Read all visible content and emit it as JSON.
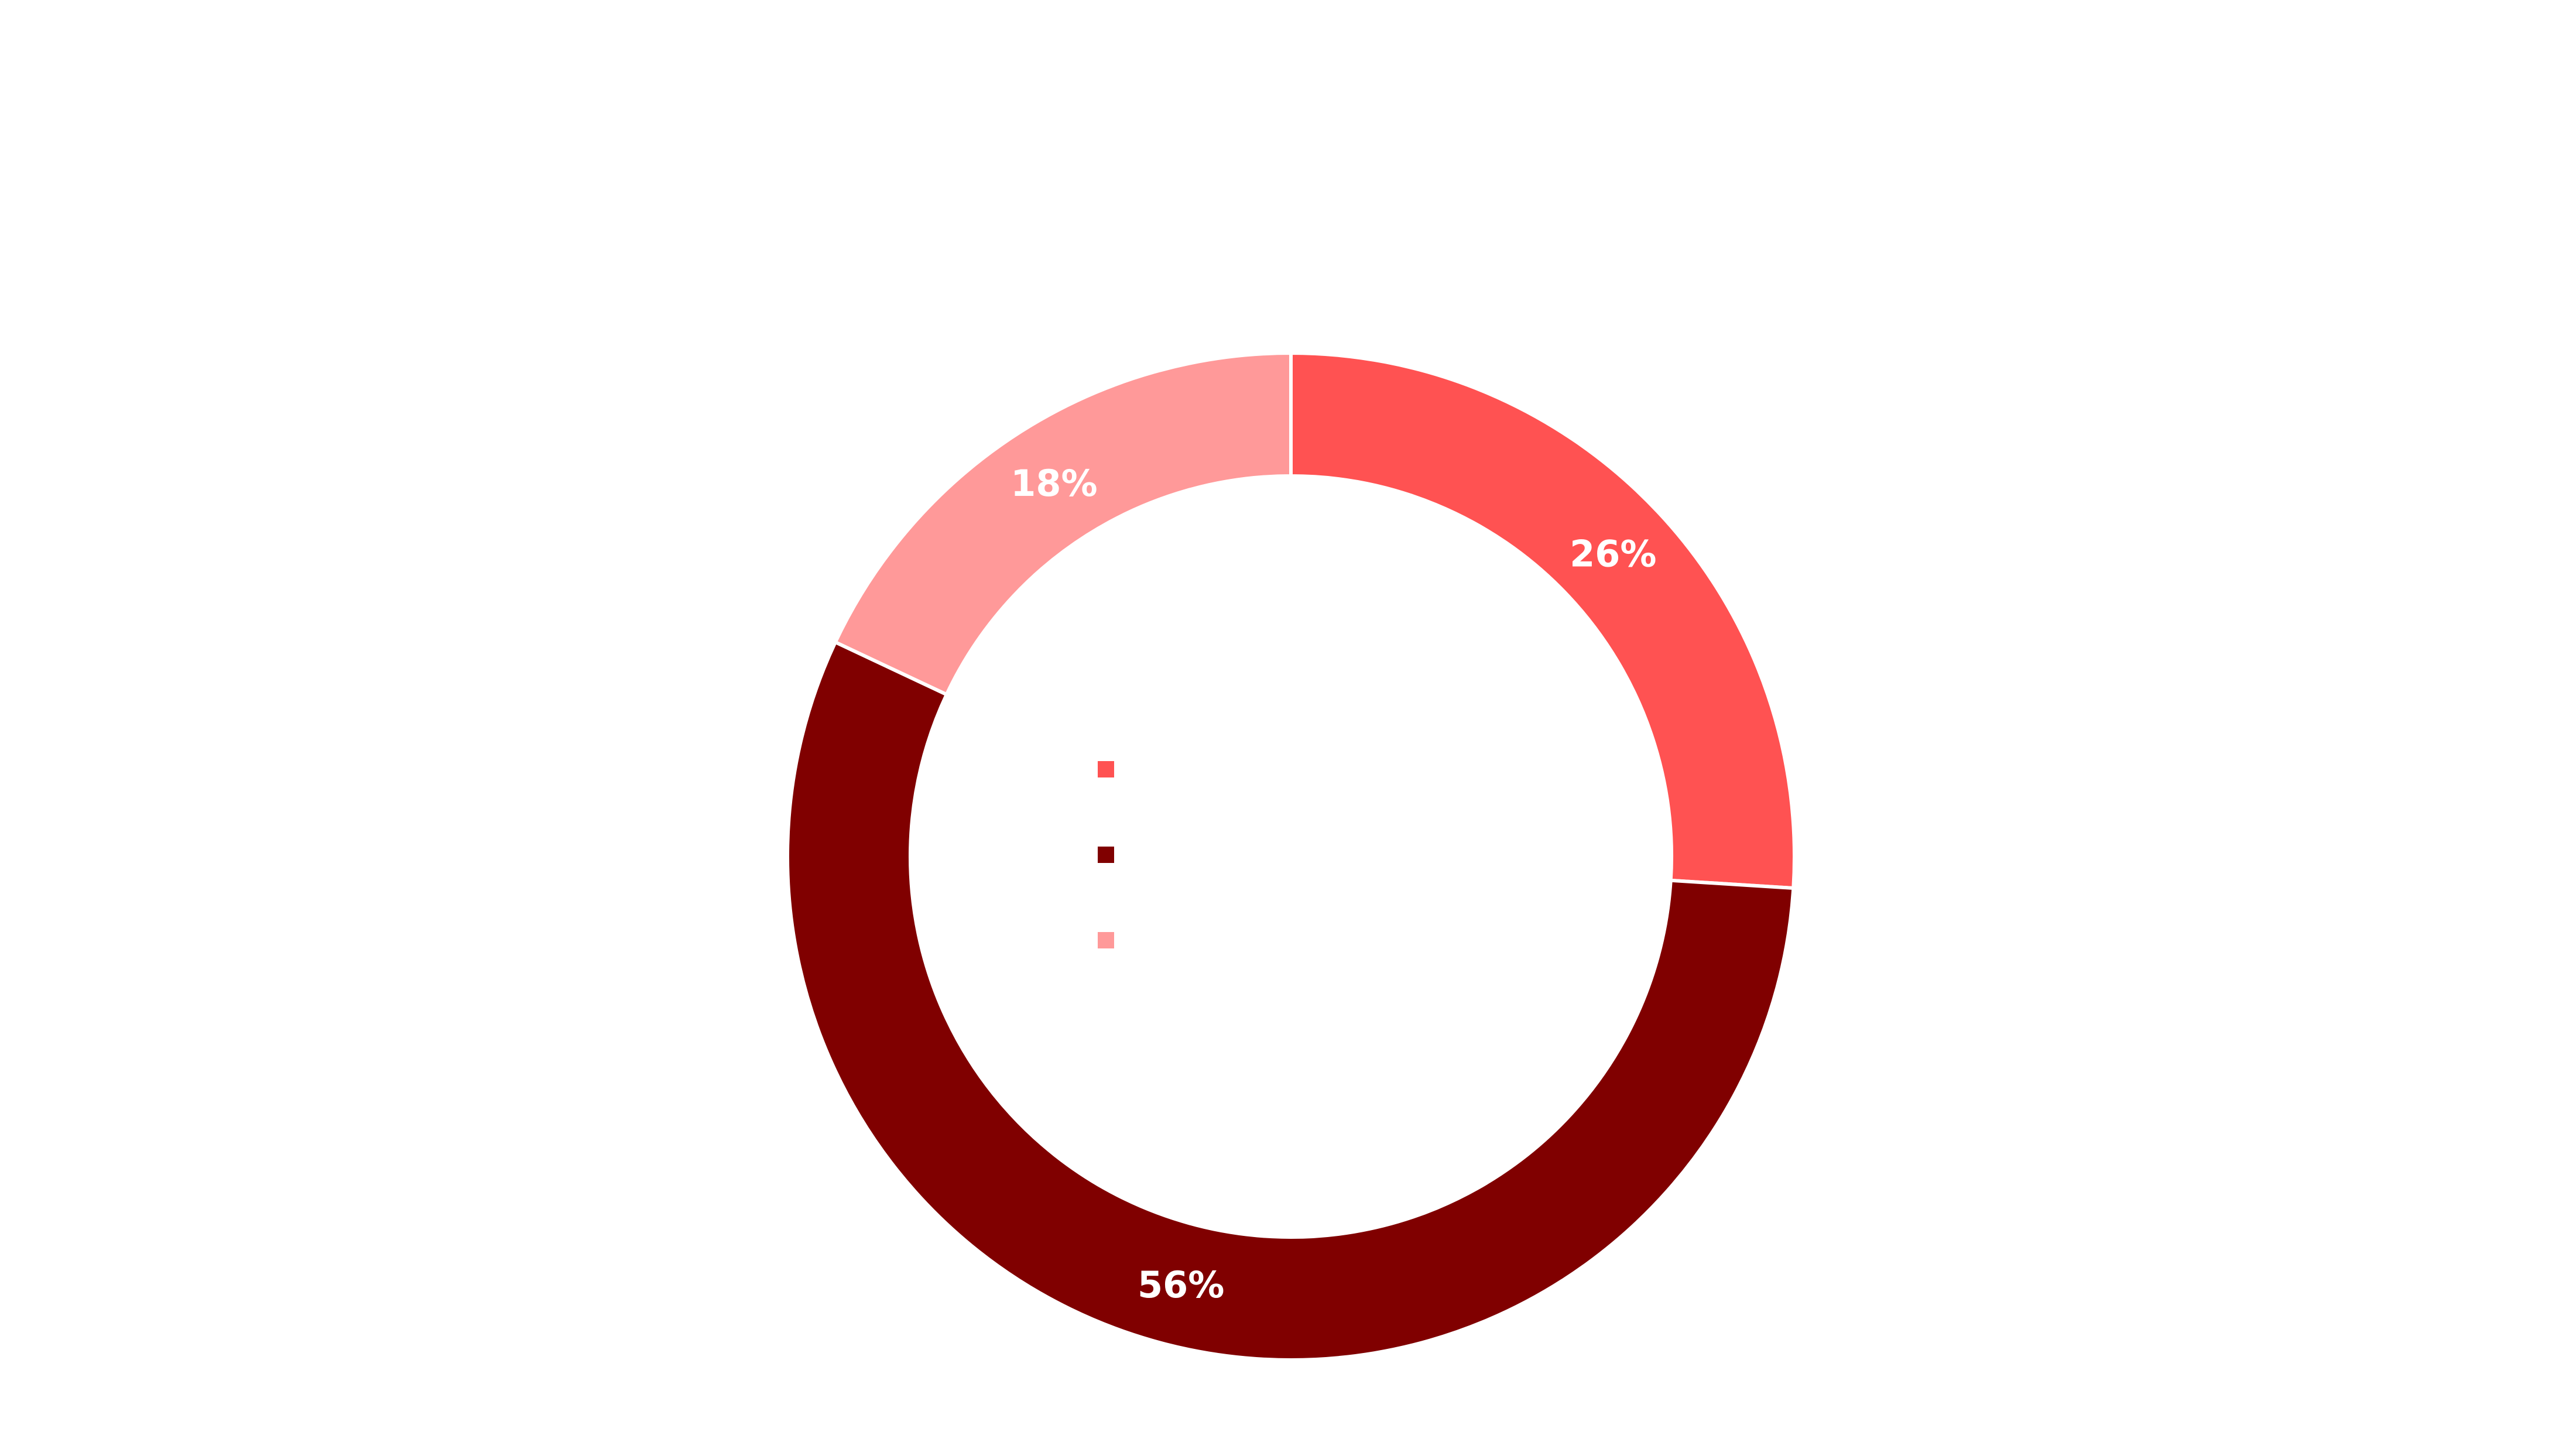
{
  "chart_data": {
    "type": "pie",
    "donut": true,
    "categories": [
      "",
      "",
      ""
    ],
    "values": [
      26,
      56,
      18
    ],
    "labels": [
      "26%",
      "56%",
      "18%"
    ],
    "colors": [
      "#ff5252",
      "#800000",
      "#ff9999"
    ],
    "title": "",
    "legend_position": "center"
  }
}
